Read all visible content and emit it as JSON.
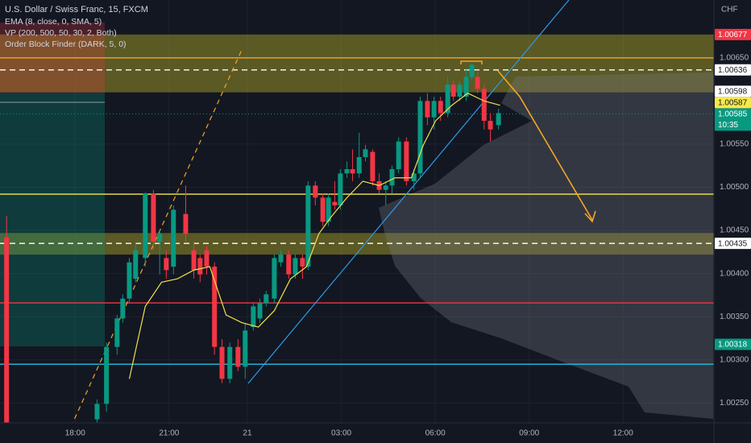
{
  "chart_data": {
    "type": "candlestick",
    "title": "U.S. Dollar / Swiss Franc, 15, FXCM",
    "indicators": [
      "EMA (8, close, 0, SMA, 5)",
      "VP (200, 500, 50, 30, 2, Both)",
      "Order Block Finder (DARK, 5, 0)"
    ],
    "currency": "CHF",
    "up_color": "#089981",
    "down_color": "#f23645",
    "grid": true,
    "xlim": [
      -2.4,
      20.4
    ],
    "ylim": [
      1.00227,
      1.00717
    ],
    "xticks": [
      {
        "value": 0,
        "label": "18:00"
      },
      {
        "value": 3,
        "label": "21:00"
      },
      {
        "value": 5.5,
        "label": "21"
      },
      {
        "value": 8.5,
        "label": "03:00"
      },
      {
        "value": 11.5,
        "label": "06:00"
      },
      {
        "value": 14.5,
        "label": "09:00"
      },
      {
        "value": 17.5,
        "label": "12:00"
      }
    ],
    "yticks": [
      {
        "value": 1.0065,
        "label": "1.00650"
      },
      {
        "value": 1.0055,
        "label": "1.00550"
      },
      {
        "value": 1.005,
        "label": "1.00500"
      },
      {
        "value": 1.0045,
        "label": "1.00450"
      },
      {
        "value": 1.004,
        "label": "1.00400"
      },
      {
        "value": 1.0035,
        "label": "1.00350"
      },
      {
        "value": 1.003,
        "label": "1.00300"
      },
      {
        "value": 1.0025,
        "label": "1.00250"
      }
    ],
    "x": [
      -2.19,
      0.7,
      1.0,
      1.34,
      1.52,
      1.73,
      1.93,
      2.24,
      2.5,
      2.7,
      2.91,
      3.14,
      3.53,
      3.79,
      3.99,
      4.2,
      4.45,
      4.69,
      4.94,
      5.2,
      5.43,
      5.69,
      5.9,
      6.1,
      6.36,
      6.57,
      6.82,
      7.03,
      7.26,
      7.44,
      7.67,
      7.91,
      8.09,
      8.29,
      8.47,
      8.68,
      8.86,
      9.07,
      9.27,
      9.5,
      9.71,
      9.92,
      10.12,
      10.33,
      10.58,
      10.82,
      11.02,
      11.25,
      11.46,
      11.67,
      11.9,
      12.08,
      12.28,
      12.49,
      12.67,
      12.85,
      13.06,
      13.26,
      13.52
    ],
    "open": [
      1.00442,
      1.00231,
      1.00249,
      1.00315,
      1.00348,
      1.00371,
      1.00394,
      1.00418,
      1.00493,
      1.00437,
      1.00418,
      1.00408,
      1.00469,
      1.00427,
      1.00418,
      1.00427,
      1.00408,
      1.00315,
      1.00278,
      1.00315,
      1.00292,
      1.00338,
      1.00348,
      1.00366,
      1.00371,
      1.00413,
      1.00422,
      1.00399,
      1.00418,
      1.00408,
      1.00502,
      1.00488,
      1.0046,
      1.00483,
      1.00479,
      1.00516,
      1.00521,
      1.00516,
      1.00535,
      1.00541,
      1.00507,
      1.00497,
      1.00502,
      1.00521,
      1.00553,
      1.00507,
      1.00516,
      1.006,
      1.00581,
      1.006,
      1.00586,
      1.00619,
      1.00605,
      1.00605,
      1.00628,
      1.00628,
      1.00614,
      1.00577,
      1.00572
    ],
    "high": [
      1.00467,
      1.00254,
      1.0032,
      1.00352,
      1.00376,
      1.00418,
      1.00437,
      1.00494,
      1.00497,
      1.00451,
      1.00427,
      1.00479,
      1.00502,
      1.00437,
      1.00422,
      1.00432,
      1.00413,
      1.00324,
      1.0032,
      1.00324,
      1.00343,
      1.00366,
      1.00371,
      1.0038,
      1.00422,
      1.00427,
      1.00427,
      1.00422,
      1.00422,
      1.00507,
      1.00507,
      1.00493,
      1.00493,
      1.00507,
      1.00521,
      1.0053,
      1.00544,
      1.00563,
      1.00549,
      1.00544,
      1.00516,
      1.00507,
      1.00525,
      1.00558,
      1.00558,
      1.00521,
      1.00605,
      1.00609,
      1.00605,
      1.00605,
      1.00628,
      1.00623,
      1.00623,
      1.00638,
      1.00644,
      1.00633,
      1.00619,
      1.00586,
      1.00591
    ],
    "low": [
      1.00213,
      1.00226,
      1.0024,
      1.00306,
      1.00343,
      1.00366,
      1.0039,
      1.00408,
      1.00427,
      1.00399,
      1.00394,
      1.00399,
      1.00437,
      1.00394,
      1.0039,
      1.00399,
      1.00306,
      1.00273,
      1.00273,
      1.00287,
      1.00278,
      1.00334,
      1.00343,
      1.00362,
      1.00366,
      1.00408,
      1.00394,
      1.00394,
      1.00394,
      1.00404,
      1.00479,
      1.00455,
      1.00455,
      1.00474,
      1.00474,
      1.00511,
      1.00507,
      1.00511,
      1.0053,
      1.00502,
      1.00493,
      1.00479,
      1.00493,
      1.00516,
      1.00502,
      1.00497,
      1.00511,
      1.00572,
      1.00567,
      1.00577,
      1.00581,
      1.006,
      1.006,
      1.006,
      1.00623,
      1.00609,
      1.00567,
      1.00553,
      1.00567
    ],
    "close": [
      1.00227,
      1.00249,
      1.00315,
      1.00348,
      1.00371,
      1.00413,
      1.00427,
      1.00493,
      1.00437,
      1.00446,
      1.00404,
      1.00474,
      1.00446,
      1.00404,
      1.00399,
      1.00408,
      1.00315,
      1.00278,
      1.00315,
      1.00292,
      1.00334,
      1.00362,
      1.00366,
      1.00376,
      1.00418,
      1.00422,
      1.00399,
      1.00418,
      1.00408,
      1.00502,
      1.00488,
      1.0046,
      1.00488,
      1.00479,
      1.00516,
      1.00521,
      1.00516,
      1.00535,
      1.00544,
      1.00507,
      1.00497,
      1.00502,
      1.00521,
      1.00553,
      1.00507,
      1.00516,
      1.006,
      1.00581,
      1.006,
      1.00586,
      1.00619,
      1.00605,
      1.00619,
      1.00628,
      1.00642,
      1.00614,
      1.00577,
      1.00567,
      1.00586
    ],
    "ema": {
      "color": "#f0e04a",
      "x": [
        1.73,
        2.24,
        2.76,
        3.27,
        3.79,
        4.3,
        4.56,
        4.82,
        5.33,
        5.85,
        6.36,
        6.88,
        7.39,
        7.78,
        8.16,
        8.68,
        9.19,
        9.71,
        10.22,
        10.74,
        11.12,
        11.51,
        12.03,
        12.54,
        13.06,
        13.57
      ],
      "values": [
        1.00278,
        1.00362,
        1.0039,
        1.00394,
        1.00404,
        1.00408,
        1.0038,
        1.00352,
        1.00343,
        1.00338,
        1.00357,
        1.00394,
        1.00408,
        1.00446,
        1.00465,
        1.00488,
        1.00507,
        1.00502,
        1.00511,
        1.00511,
        1.00549,
        1.00577,
        1.00595,
        1.00609,
        1.006,
        1.00595
      ]
    },
    "zones": [
      {
        "from": 1.00677,
        "to": 1.0061,
        "color": "rgba(190,180,40,0.42)"
      },
      {
        "from": 1.00447,
        "to": 1.00422,
        "color": "rgba(190,180,40,0.42)"
      }
    ],
    "levels": [
      {
        "value": 1.0065,
        "color": "#f5a623",
        "dash": false
      },
      {
        "value": 1.00636,
        "color": "#ffffff",
        "dash": true
      },
      {
        "value": 1.00492,
        "color": "#f7e94a",
        "dash": false
      },
      {
        "value": 1.00435,
        "color": "#ffffff",
        "dash": true
      },
      {
        "value": 1.00366,
        "color": "#f23645",
        "dash": false
      },
      {
        "value": 1.00295,
        "color": "#22c3e6",
        "dash": false
      }
    ],
    "price_tags": [
      {
        "value": 1.00677,
        "label": "1.00677",
        "color": "#f23645",
        "text_color": "#ffffff"
      },
      {
        "value": 1.00636,
        "label": "1.00636",
        "color": "#ffffff",
        "text_color": "#131722"
      },
      {
        "value": 1.00598,
        "label": "1.00598",
        "color": "#ffffff",
        "text_color": "#131722"
      },
      {
        "value": 1.00587,
        "label": "1.00587",
        "color": "#f7e94a",
        "text_color": "#131722"
      },
      {
        "value": 1.00585,
        "label": "1.00585",
        "color": "#089981",
        "text_color": "#ffffff",
        "countdown": "10:35"
      },
      {
        "value": 1.00435,
        "label": "1.00435",
        "color": "#ffffff",
        "text_color": "#131722"
      },
      {
        "value": 1.00318,
        "label": "1.00318",
        "color": "#089981",
        "text_color": "#ffffff"
      }
    ]
  }
}
